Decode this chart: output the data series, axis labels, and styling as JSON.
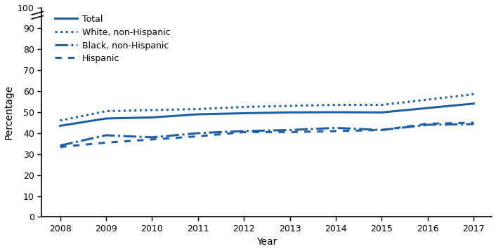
{
  "years": [
    2008,
    2009,
    2010,
    2011,
    2012,
    2013,
    2014,
    2015,
    2016,
    2017
  ],
  "total": [
    43.5,
    47.0,
    47.5,
    49.0,
    49.5,
    49.9,
    50.0,
    49.9,
    52.0,
    54.1
  ],
  "white_nh": [
    46.0,
    50.5,
    51.0,
    51.5,
    52.5,
    53.0,
    53.5,
    53.5,
    56.0,
    58.6
  ],
  "black_nh": [
    34.1,
    39.0,
    38.0,
    40.0,
    41.0,
    41.5,
    42.5,
    41.5,
    44.0,
    44.3
  ],
  "hispanic": [
    33.4,
    35.5,
    37.0,
    38.5,
    40.5,
    40.5,
    41.0,
    41.5,
    44.5,
    45.0
  ],
  "line_color": "#1f5fa6",
  "ylabel": "Percentage",
  "xlabel": "Year",
  "ylim": [
    0,
    100
  ],
  "yticks": [
    0,
    10,
    20,
    30,
    40,
    50,
    60,
    70,
    80,
    90,
    100
  ],
  "legend_labels": [
    "Total",
    "White, non-Hispanic",
    "Black, non-Hispanic",
    "Hispanic"
  ],
  "background_color": "#ffffff",
  "tick_fontsize": 9,
  "label_fontsize": 10,
  "linewidth": 2.2
}
